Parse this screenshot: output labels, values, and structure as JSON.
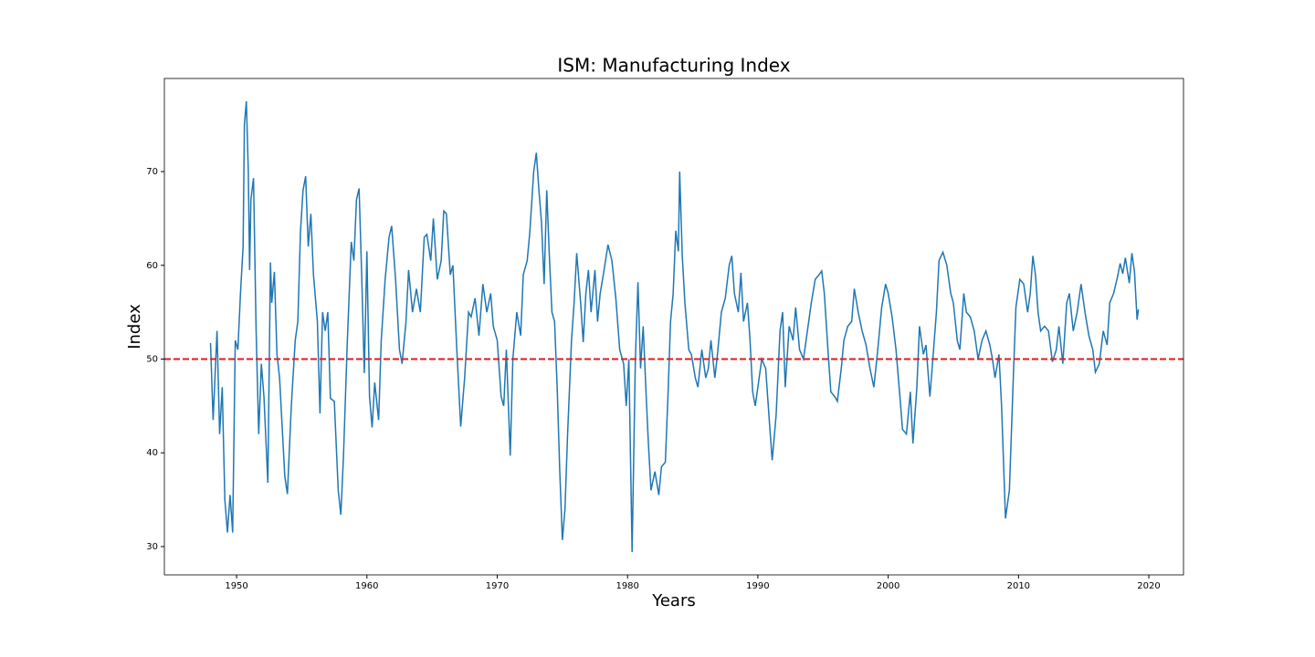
{
  "chart_data": {
    "type": "line",
    "title": "ISM: Manufacturing Index",
    "x_label": "Years",
    "y_label": "Index",
    "color": "#1f77b4",
    "x": [
      1948.0,
      1948.2,
      1948.5,
      1948.7,
      1948.9,
      1949.1,
      1949.3,
      1949.5,
      1949.7,
      1949.9,
      1950.1,
      1950.3,
      1950.5,
      1950.6,
      1950.75,
      1950.9,
      1951.0,
      1951.1,
      1951.3,
      1951.5,
      1951.7,
      1951.9,
      1952.1,
      1952.4,
      1952.6,
      1952.7,
      1952.9,
      1953.1,
      1953.3,
      1953.7,
      1953.9,
      1954.2,
      1954.5,
      1954.7,
      1954.9,
      1955.1,
      1955.3,
      1955.5,
      1955.7,
      1955.9,
      1956.2,
      1956.4,
      1956.6,
      1956.8,
      1957.0,
      1957.2,
      1957.5,
      1957.8,
      1958.0,
      1958.2,
      1958.5,
      1958.8,
      1959.0,
      1959.2,
      1959.4,
      1959.6,
      1959.8,
      1960.0,
      1960.2,
      1960.4,
      1960.6,
      1960.9,
      1961.1,
      1961.4,
      1961.7,
      1961.9,
      1962.2,
      1962.5,
      1962.7,
      1963.0,
      1963.2,
      1963.5,
      1963.8,
      1964.1,
      1964.4,
      1964.6,
      1964.9,
      1965.1,
      1965.4,
      1965.7,
      1965.9,
      1966.1,
      1966.4,
      1966.6,
      1966.9,
      1967.2,
      1967.5,
      1967.8,
      1968.0,
      1968.3,
      1968.6,
      1968.9,
      1969.2,
      1969.5,
      1969.7,
      1970.0,
      1970.3,
      1970.5,
      1970.7,
      1971.0,
      1971.2,
      1971.5,
      1971.8,
      1972.0,
      1972.3,
      1972.5,
      1972.8,
      1973.0,
      1973.2,
      1973.4,
      1973.6,
      1973.8,
      1974.0,
      1974.2,
      1974.4,
      1974.6,
      1974.8,
      1975.0,
      1975.2,
      1975.4,
      1975.7,
      1975.9,
      1976.1,
      1976.4,
      1976.6,
      1976.8,
      1977.0,
      1977.2,
      1977.5,
      1977.7,
      1977.9,
      1978.2,
      1978.5,
      1978.8,
      1979.1,
      1979.4,
      1979.7,
      1979.9,
      1980.1,
      1980.35,
      1980.6,
      1980.8,
      1981.0,
      1981.2,
      1981.4,
      1981.6,
      1981.8,
      1982.1,
      1982.4,
      1982.6,
      1982.9,
      1983.1,
      1983.3,
      1983.5,
      1983.7,
      1983.9,
      1984.0,
      1984.2,
      1984.4,
      1984.7,
      1984.9,
      1985.2,
      1985.4,
      1985.7,
      1986.0,
      1986.2,
      1986.4,
      1986.7,
      1986.9,
      1987.2,
      1987.5,
      1987.8,
      1988.0,
      1988.2,
      1988.5,
      1988.7,
      1988.9,
      1989.2,
      1989.4,
      1989.6,
      1989.8,
      1990.1,
      1990.3,
      1990.6,
      1990.9,
      1991.1,
      1991.4,
      1991.7,
      1991.9,
      1992.1,
      1992.4,
      1992.7,
      1992.9,
      1993.2,
      1993.5,
      1993.8,
      1994.1,
      1994.4,
      1994.7,
      1994.9,
      1995.1,
      1995.4,
      1995.6,
      1995.9,
      1996.1,
      1996.4,
      1996.6,
      1996.9,
      1997.2,
      1997.4,
      1997.7,
      1998.0,
      1998.3,
      1998.6,
      1998.9,
      1999.2,
      1999.5,
      1999.8,
      2000.0,
      2000.3,
      2000.6,
      2000.9,
      2001.1,
      2001.4,
      2001.7,
      2001.9,
      2002.2,
      2002.4,
      2002.7,
      2002.9,
      2003.2,
      2003.4,
      2003.7,
      2003.9,
      2004.2,
      2004.5,
      2004.8,
      2005.0,
      2005.3,
      2005.5,
      2005.8,
      2006.0,
      2006.3,
      2006.6,
      2006.9,
      2007.2,
      2007.5,
      2007.8,
      2008.0,
      2008.2,
      2008.5,
      2008.7,
      2008.9,
      2009.0,
      2009.3,
      2009.6,
      2009.8,
      2010.1,
      2010.4,
      2010.7,
      2010.9,
      2011.1,
      2011.3,
      2011.5,
      2011.7,
      2012.0,
      2012.3,
      2012.6,
      2012.9,
      2013.1,
      2013.4,
      2013.7,
      2013.9,
      2014.2,
      2014.5,
      2014.8,
      2015.1,
      2015.4,
      2015.7,
      2015.9,
      2016.2,
      2016.5,
      2016.8,
      2017.0,
      2017.3,
      2017.6,
      2017.8,
      2018.0,
      2018.2,
      2018.5,
      2018.7,
      2018.9,
      2019.1,
      2019.2
    ],
    "values": [
      51.7,
      43.5,
      53,
      42,
      47,
      35,
      31.5,
      35.5,
      31.5,
      52,
      51,
      57,
      62,
      75,
      77.5,
      70,
      59.5,
      67,
      69.3,
      53,
      42,
      49.5,
      46,
      36.8,
      60.3,
      56,
      59.3,
      50.5,
      48,
      37.5,
      35.6,
      45,
      52,
      54,
      63.5,
      68,
      69.5,
      62,
      65.5,
      59,
      54,
      44.2,
      55,
      53,
      55,
      45.8,
      45.5,
      36,
      33.4,
      39.5,
      52,
      62.5,
      60.5,
      67,
      68.2,
      59,
      48.5,
      61.5,
      46,
      42.7,
      47.5,
      43.5,
      52,
      58.5,
      63,
      64.2,
      58.5,
      51,
      49.5,
      54,
      59.5,
      55,
      57.5,
      55,
      63,
      63.3,
      60.5,
      65,
      58.5,
      60.5,
      65.8,
      65.5,
      59,
      60,
      51,
      42.8,
      48,
      55,
      54.5,
      56.5,
      52.5,
      58,
      55,
      57,
      53.5,
      52,
      46,
      45,
      51,
      39.7,
      50,
      55,
      52.5,
      59,
      60.5,
      63.5,
      70,
      72,
      68,
      64.5,
      58,
      68,
      61,
      55,
      54,
      47,
      38,
      30.7,
      34,
      42,
      52,
      56,
      61.3,
      56,
      51.8,
      57,
      59.5,
      55,
      59.5,
      54,
      57,
      59.5,
      62.2,
      60.5,
      56.5,
      51,
      49.5,
      45,
      50,
      29.4,
      50,
      58.2,
      49,
      53.5,
      47,
      41,
      36,
      38,
      35.5,
      38.5,
      39,
      46,
      54,
      57,
      63.7,
      61.5,
      70,
      61,
      56,
      51,
      50.5,
      48,
      47,
      51,
      48,
      49,
      52,
      48,
      50.5,
      55,
      56.5,
      60,
      61,
      57,
      55,
      59.2,
      54,
      56,
      52,
      46.5,
      45,
      48,
      50,
      49,
      43,
      39.2,
      44,
      53,
      55,
      47,
      53.5,
      52,
      55.5,
      51,
      50,
      53,
      56,
      58.5,
      59,
      59.4,
      57,
      50.5,
      46.5,
      46,
      45.5,
      49,
      52,
      53.5,
      54,
      57.5,
      55,
      53,
      51.5,
      49,
      47,
      51,
      55.5,
      58,
      57,
      54.5,
      51,
      46,
      42.5,
      42,
      46.5,
      41,
      47,
      53.5,
      50.5,
      51.5,
      46,
      49.5,
      55,
      60.5,
      61.4,
      60,
      57,
      56,
      52,
      51,
      57,
      55,
      54.5,
      53,
      50,
      52,
      53,
      51.5,
      50,
      48,
      50.5,
      45,
      37,
      33,
      36,
      48,
      55.5,
      58.5,
      58,
      55,
      57,
      61,
      59,
      55,
      53,
      53.5,
      53,
      49.7,
      51,
      53.5,
      49.5,
      56,
      57,
      53,
      55,
      58,
      55,
      52.5,
      51,
      48.6,
      49.5,
      53,
      51.5,
      56,
      57,
      58.8,
      60.2,
      59.1,
      60.8,
      58.1,
      61.3,
      59.3,
      54.2,
      55.3
    ],
    "hline": {
      "value": 50,
      "color": "#e41a1c",
      "style": "dashed"
    },
    "xlim": [
      1944.46,
      2022.66
    ],
    "ylim": [
      26.98,
      79.93
    ],
    "xticks": [
      1950,
      1960,
      1970,
      1980,
      1990,
      2000,
      2010,
      2020
    ],
    "yticks": [
      30,
      40,
      50,
      60,
      70
    ]
  }
}
